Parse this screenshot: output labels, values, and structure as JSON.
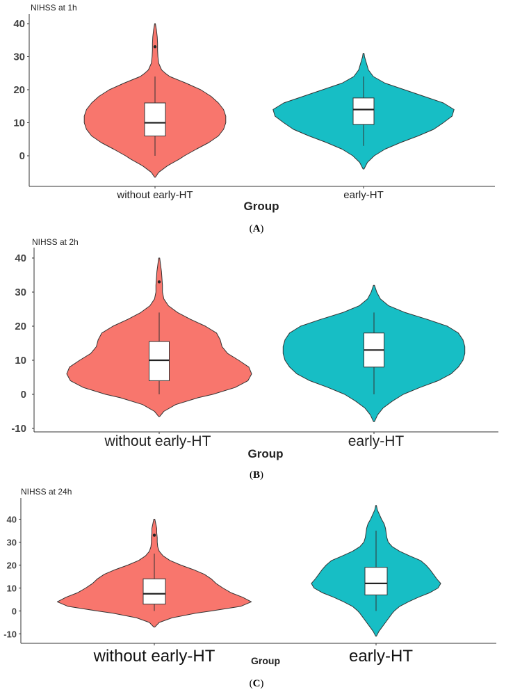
{
  "chart_data": [
    {
      "type": "violin",
      "panel": "A",
      "ylabel": "NIHSS at 1h",
      "xlabel": "Group",
      "yticks": [
        0,
        10,
        20,
        30,
        40
      ],
      "ylim": [
        -9,
        40
      ],
      "grid": false,
      "categories": [
        "without early-HT",
        "early-HT"
      ],
      "colors": [
        "#F8766D",
        "#17BEC5"
      ],
      "groups": [
        {
          "name": "without early-HT",
          "box": {
            "min": 0,
            "q1": 6,
            "median": 10,
            "q3": 16,
            "max": 24
          },
          "outliers": [
            33
          ],
          "range": [
            -6.5,
            40
          ],
          "density": [
            [
              -6.5,
              0.005
            ],
            [
              -5,
              0.05
            ],
            [
              -3,
              0.17
            ],
            [
              -1,
              0.33
            ],
            [
              0,
              0.4
            ],
            [
              2,
              0.56
            ],
            [
              4,
              0.73
            ],
            [
              6,
              0.86
            ],
            [
              8,
              0.93
            ],
            [
              10,
              0.96
            ],
            [
              12,
              0.96
            ],
            [
              14,
              0.93
            ],
            [
              16,
              0.86
            ],
            [
              18,
              0.76
            ],
            [
              20,
              0.62
            ],
            [
              22,
              0.42
            ],
            [
              24,
              0.2
            ],
            [
              25,
              0.14
            ],
            [
              26,
              0.09
            ],
            [
              28,
              0.05
            ],
            [
              30,
              0.04
            ],
            [
              32,
              0.035
            ],
            [
              34,
              0.035
            ],
            [
              36,
              0.03
            ],
            [
              38,
              0.02
            ],
            [
              40,
              0.005
            ]
          ]
        },
        {
          "name": "early-HT",
          "box": {
            "min": 3,
            "q1": 9.5,
            "median": 14,
            "q3": 17.5,
            "max": 24
          },
          "outliers": [],
          "range": [
            -4,
            31
          ],
          "density": [
            [
              -4,
              0.005
            ],
            [
              -2,
              0.04
            ],
            [
              0,
              0.11
            ],
            [
              2,
              0.22
            ],
            [
              4,
              0.38
            ],
            [
              6,
              0.56
            ],
            [
              8,
              0.72
            ],
            [
              10,
              0.82
            ],
            [
              12,
              0.91
            ],
            [
              14,
              0.93
            ],
            [
              16,
              0.82
            ],
            [
              18,
              0.62
            ],
            [
              20,
              0.42
            ],
            [
              22,
              0.22
            ],
            [
              24,
              0.1
            ],
            [
              26,
              0.05
            ],
            [
              28,
              0.03
            ],
            [
              30,
              0.01
            ],
            [
              31,
              0.005
            ]
          ]
        }
      ]
    },
    {
      "type": "violin",
      "panel": "B",
      "ylabel": "NIHSS at 2h",
      "xlabel": "Group",
      "yticks": [
        -10,
        0,
        10,
        20,
        30,
        40
      ],
      "ylim": [
        -10.5,
        40
      ],
      "grid": false,
      "categories": [
        "without early-HT",
        "early-HT"
      ],
      "colors": [
        "#F8766D",
        "#17BEC5"
      ],
      "groups": [
        {
          "name": "without early-HT",
          "box": {
            "min": 0,
            "q1": 4,
            "median": 10,
            "q3": 15.5,
            "max": 24
          },
          "outliers": [
            33
          ],
          "range": [
            -6.5,
            40
          ],
          "density": [
            [
              -6.5,
              0.005
            ],
            [
              -5,
              0.05
            ],
            [
              -3,
              0.18
            ],
            [
              -1,
              0.42
            ],
            [
              0,
              0.58
            ],
            [
              2,
              0.82
            ],
            [
              4,
              0.96
            ],
            [
              6,
              1.0
            ],
            [
              8,
              0.97
            ],
            [
              10,
              0.86
            ],
            [
              12,
              0.74
            ],
            [
              14,
              0.68
            ],
            [
              16,
              0.66
            ],
            [
              18,
              0.62
            ],
            [
              20,
              0.5
            ],
            [
              22,
              0.34
            ],
            [
              24,
              0.2
            ],
            [
              26,
              0.1
            ],
            [
              28,
              0.05
            ],
            [
              30,
              0.035
            ],
            [
              32,
              0.035
            ],
            [
              34,
              0.03
            ],
            [
              36,
              0.025
            ],
            [
              38,
              0.015
            ],
            [
              40,
              0.005
            ]
          ]
        },
        {
          "name": "early-HT",
          "box": {
            "min": 0,
            "q1": 8,
            "median": 13,
            "q3": 18,
            "max": 24
          },
          "outliers": [],
          "range": [
            -8,
            32
          ],
          "density": [
            [
              -8,
              0.005
            ],
            [
              -6,
              0.04
            ],
            [
              -4,
              0.1
            ],
            [
              -2,
              0.2
            ],
            [
              0,
              0.32
            ],
            [
              2,
              0.5
            ],
            [
              4,
              0.7
            ],
            [
              6,
              0.84
            ],
            [
              8,
              0.92
            ],
            [
              10,
              0.97
            ],
            [
              12,
              0.99
            ],
            [
              14,
              0.99
            ],
            [
              16,
              0.97
            ],
            [
              18,
              0.92
            ],
            [
              20,
              0.8
            ],
            [
              22,
              0.58
            ],
            [
              24,
              0.34
            ],
            [
              26,
              0.16
            ],
            [
              28,
              0.07
            ],
            [
              30,
              0.03
            ],
            [
              32,
              0.005
            ]
          ]
        }
      ]
    },
    {
      "type": "violin",
      "panel": "C",
      "ylabel": "NIHSS at 24h",
      "xlabel": "Group",
      "yticks": [
        -10,
        0,
        10,
        20,
        30,
        40
      ],
      "ylim": [
        -13,
        45
      ],
      "grid": false,
      "categories": [
        "without early-HT",
        "early-HT"
      ],
      "colors": [
        "#F8766D",
        "#17BEC5"
      ],
      "groups": [
        {
          "name": "without early-HT",
          "box": {
            "min": 0,
            "q1": 3,
            "median": 7.5,
            "q3": 14,
            "max": 25
          },
          "outliers": [
            33
          ],
          "range": [
            -7,
            40
          ],
          "density": [
            [
              -7,
              0.005
            ],
            [
              -5,
              0.05
            ],
            [
              -3,
              0.18
            ],
            [
              -1,
              0.42
            ],
            [
              0,
              0.58
            ],
            [
              2,
              0.88
            ],
            [
              4,
              0.99
            ],
            [
              6,
              0.9
            ],
            [
              8,
              0.78
            ],
            [
              10,
              0.7
            ],
            [
              12,
              0.63
            ],
            [
              14,
              0.58
            ],
            [
              16,
              0.51
            ],
            [
              18,
              0.4
            ],
            [
              20,
              0.27
            ],
            [
              22,
              0.16
            ],
            [
              24,
              0.09
            ],
            [
              26,
              0.05
            ],
            [
              28,
              0.035
            ],
            [
              30,
              0.03
            ],
            [
              32,
              0.03
            ],
            [
              34,
              0.025
            ],
            [
              36,
              0.025
            ],
            [
              38,
              0.015
            ],
            [
              40,
              0.005
            ]
          ]
        },
        {
          "name": "early-HT",
          "box": {
            "min": 0,
            "q1": 7,
            "median": 12,
            "q3": 19,
            "max": 35
          },
          "outliers": [],
          "range": [
            -11,
            46
          ],
          "density": [
            [
              -11,
              0.005
            ],
            [
              -9,
              0.04
            ],
            [
              -7,
              0.09
            ],
            [
              -5,
              0.14
            ],
            [
              -3,
              0.19
            ],
            [
              -1,
              0.24
            ],
            [
              0,
              0.27
            ],
            [
              2,
              0.35
            ],
            [
              4,
              0.48
            ],
            [
              6,
              0.63
            ],
            [
              8,
              0.8
            ],
            [
              10,
              0.92
            ],
            [
              12,
              0.96
            ],
            [
              14,
              0.9
            ],
            [
              16,
              0.85
            ],
            [
              18,
              0.8
            ],
            [
              20,
              0.74
            ],
            [
              22,
              0.66
            ],
            [
              24,
              0.5
            ],
            [
              26,
              0.35
            ],
            [
              28,
              0.24
            ],
            [
              30,
              0.18
            ],
            [
              32,
              0.16
            ],
            [
              34,
              0.15
            ],
            [
              36,
              0.14
            ],
            [
              38,
              0.12
            ],
            [
              40,
              0.08
            ],
            [
              42,
              0.05
            ],
            [
              44,
              0.02
            ],
            [
              46,
              0.005
            ]
          ]
        }
      ]
    }
  ]
}
